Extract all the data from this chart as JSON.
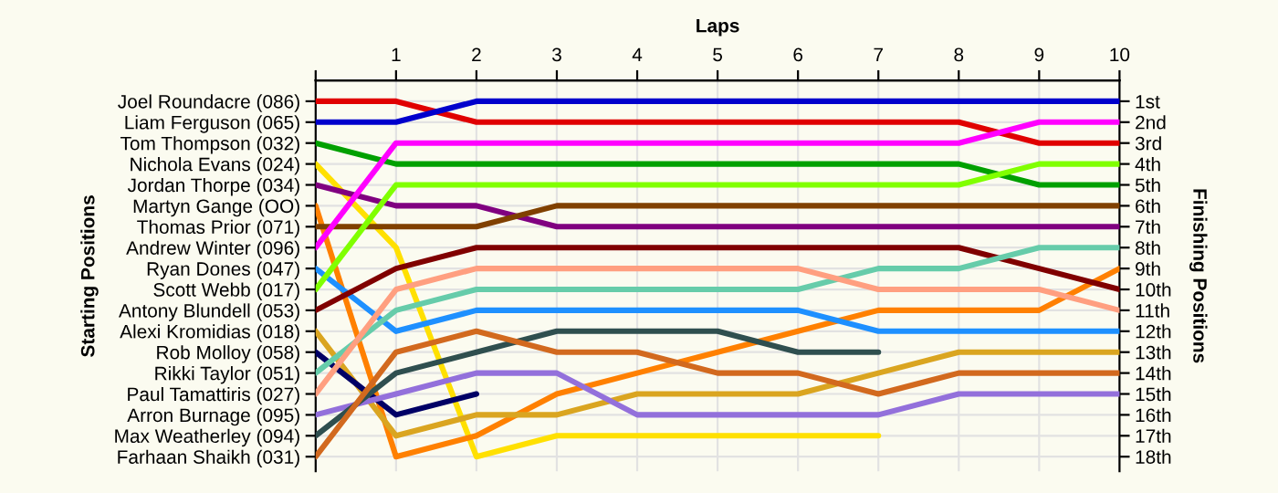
{
  "chart_data": {
    "type": "line",
    "xlabel": "Laps",
    "annotations": [
      "Starting Positions"
    ],
    "y2label": "Finishing Positions",
    "x": [
      0,
      1,
      2,
      3,
      4,
      5,
      6,
      7,
      8,
      9,
      10
    ],
    "xlim": [
      0,
      10
    ],
    "xticks": [
      {
        "value": 0,
        "label": null
      },
      1,
      2,
      3,
      4,
      5,
      6,
      7,
      8,
      9,
      10
    ],
    "y2lim": [
      18.7,
      0
    ],
    "y2ticks": [
      {
        "value": 1,
        "label": "1st"
      },
      {
        "value": 2,
        "label": "2nd"
      },
      {
        "value": 3,
        "label": "3rd"
      },
      {
        "value": 4,
        "label": "4th"
      },
      {
        "value": 5,
        "label": "5th"
      },
      {
        "value": 6,
        "label": "6th"
      },
      {
        "value": 7,
        "label": "7th"
      },
      {
        "value": 8,
        "label": "8th"
      },
      {
        "value": 9,
        "label": "9th"
      },
      {
        "value": 10,
        "label": "10th"
      },
      {
        "value": 11,
        "label": "11th"
      },
      {
        "value": 12,
        "label": "12th"
      },
      {
        "value": 13,
        "label": "13th"
      },
      {
        "value": 14,
        "label": "14th"
      },
      {
        "value": 15,
        "label": "15th"
      },
      {
        "value": 16,
        "label": "16th"
      },
      {
        "value": 17,
        "label": "17th"
      },
      {
        "value": 18,
        "label": "18th"
      }
    ],
    "grid": true,
    "series": [
      {
        "name": "Joel Roundacre (086)",
        "axis": "y2",
        "color": "#e00000",
        "values": [
          1,
          1,
          2,
          2,
          2,
          2,
          2,
          2,
          2,
          3,
          3
        ]
      },
      {
        "name": "Liam Ferguson (065)",
        "axis": "y2",
        "color": "#0000cc",
        "values": [
          2,
          2,
          1,
          1,
          1,
          1,
          1,
          1,
          1,
          1,
          1
        ]
      },
      {
        "name": "Tom Thompson (032)",
        "axis": "y2",
        "color": "#00a000",
        "values": [
          3,
          4,
          4,
          4,
          4,
          4,
          4,
          4,
          4,
          5,
          5
        ]
      },
      {
        "name": "Nichola Evans (024)",
        "axis": "y2",
        "color": "#ffe000",
        "values": [
          4,
          8,
          18,
          17,
          17,
          17,
          17,
          17,
          null,
          null,
          null
        ]
      },
      {
        "name": "Jordan Thorpe (034)",
        "axis": "y2",
        "color": "#800080",
        "values": [
          5,
          6,
          6,
          7,
          7,
          7,
          7,
          7,
          7,
          7,
          7
        ]
      },
      {
        "name": "Martyn Gange (OO)",
        "axis": "y2",
        "color": "#ff8000",
        "values": [
          6,
          18,
          17,
          15,
          14,
          13,
          12,
          11,
          11,
          11,
          9
        ]
      },
      {
        "name": "Thomas Prior (071)",
        "axis": "y2",
        "color": "#804000",
        "values": [
          7,
          7,
          7,
          6,
          6,
          6,
          6,
          6,
          6,
          6,
          6
        ]
      },
      {
        "name": "Andrew Winter (096)",
        "axis": "y2",
        "color": "#ff00ff",
        "values": [
          8,
          3,
          3,
          3,
          3,
          3,
          3,
          3,
          3,
          2,
          2
        ]
      },
      {
        "name": "Ryan Dones (047)",
        "axis": "y2",
        "color": "#1e90ff",
        "values": [
          9,
          12,
          11,
          11,
          11,
          11,
          11,
          12,
          12,
          12,
          12
        ]
      },
      {
        "name": "Scott Webb (017)",
        "axis": "y2",
        "color": "#80ff00",
        "values": [
          10,
          5,
          5,
          5,
          5,
          5,
          5,
          5,
          5,
          4,
          4
        ]
      },
      {
        "name": "Antony Blundell (053)",
        "axis": "y2",
        "color": "#800000",
        "values": [
          11,
          9,
          8,
          8,
          8,
          8,
          8,
          8,
          8,
          9,
          10
        ]
      },
      {
        "name": "Alexi Kromidias (018)",
        "axis": "y2",
        "color": "#daa520",
        "values": [
          12,
          17,
          16,
          16,
          15,
          15,
          15,
          14,
          13,
          13,
          13
        ]
      },
      {
        "name": "Rob Molloy (058)",
        "axis": "y2",
        "color": "#000066",
        "values": [
          13,
          16,
          15,
          null,
          null,
          null,
          null,
          null,
          null,
          null,
          null
        ]
      },
      {
        "name": "Rikki Taylor (051)",
        "axis": "y2",
        "color": "#66ccaa",
        "values": [
          14,
          11,
          10,
          10,
          10,
          10,
          10,
          9,
          9,
          8,
          8
        ]
      },
      {
        "name": "Paul Tamattiris (027)",
        "axis": "y2",
        "color": "#ff9f80",
        "values": [
          15,
          10,
          9,
          9,
          9,
          9,
          9,
          10,
          10,
          10,
          11
        ]
      },
      {
        "name": "Arron Burnage (095)",
        "axis": "y2",
        "color": "#9370db",
        "values": [
          16,
          15,
          14,
          14,
          16,
          16,
          16,
          16,
          15,
          15,
          15
        ]
      },
      {
        "name": "Max Weatherley (094)",
        "axis": "y2",
        "color": "#2f4f4f",
        "values": [
          17,
          14,
          13,
          12,
          12,
          12,
          13,
          13,
          null,
          null,
          null
        ]
      },
      {
        "name": "Farhaan Shaikh (031)",
        "axis": "y2",
        "color": "#d2691e",
        "values": [
          18,
          13,
          12,
          13,
          13,
          14,
          14,
          15,
          14,
          14,
          14
        ]
      }
    ]
  }
}
